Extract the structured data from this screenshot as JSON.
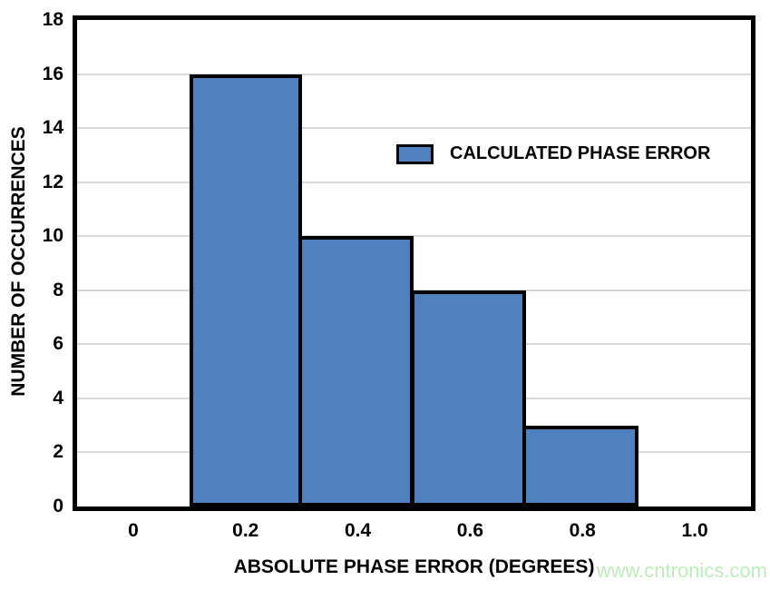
{
  "chart_data": {
    "type": "bar",
    "subtype": "histogram",
    "title": "",
    "xlabel": "ABSOLUTE PHASE ERROR (DEGREES)",
    "ylabel": "NUMBER OF OCCURRENCES",
    "bins": [
      {
        "x0": 0.1,
        "x1": 0.3,
        "value": 16
      },
      {
        "x0": 0.3,
        "x1": 0.5,
        "value": 10
      },
      {
        "x0": 0.5,
        "x1": 0.7,
        "value": 8
      },
      {
        "x0": 0.7,
        "x1": 0.9,
        "value": 3
      }
    ],
    "series_name": "CALCULATED PHASE ERROR",
    "x_ticks": {
      "values": [
        0,
        0.2,
        0.4,
        0.6,
        0.8,
        1.0
      ],
      "labels": [
        "0",
        "0.2",
        "0.4",
        "0.6",
        "0.8",
        "1.0"
      ]
    },
    "y_ticks": {
      "values": [
        0,
        2,
        4,
        6,
        8,
        10,
        12,
        14,
        16,
        18
      ],
      "labels": [
        "0",
        "2",
        "4",
        "6",
        "8",
        "10",
        "12",
        "14",
        "16",
        "18"
      ]
    },
    "xlim": [
      -0.1,
      1.1
    ],
    "ylim": [
      0,
      18
    ],
    "grid": {
      "horizontal": true,
      "vertical": false
    },
    "legend_position": "inside-upper-middle",
    "colors": {
      "bar_fill": "#4E81BD",
      "bar_border": "#000000",
      "grid": "#d9d9d9",
      "axis": "#000000",
      "text": "#000000",
      "background": "#ffffff"
    }
  },
  "watermark": {
    "text": "www.cntronics.com",
    "color": "#c0ebbc"
  }
}
